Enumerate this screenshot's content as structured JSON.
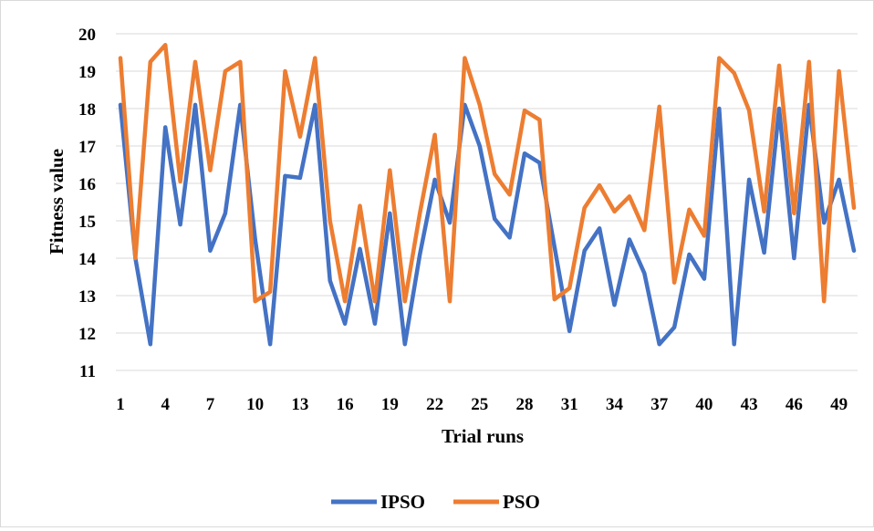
{
  "chart_data": {
    "type": "line",
    "xlabel": "Trial runs",
    "ylabel": "Fitness value",
    "ylim": [
      11,
      20
    ],
    "yticks": [
      11,
      12,
      13,
      14,
      15,
      16,
      17,
      18,
      19,
      20
    ],
    "xtick_labels": [
      "1",
      "4",
      "7",
      "10",
      "13",
      "16",
      "19",
      "22",
      "25",
      "28",
      "31",
      "34",
      "37",
      "40",
      "43",
      "46",
      "49"
    ],
    "x": [
      1,
      2,
      3,
      4,
      5,
      6,
      7,
      8,
      9,
      10,
      11,
      12,
      13,
      14,
      15,
      16,
      17,
      18,
      19,
      20,
      21,
      22,
      23,
      24,
      25,
      26,
      27,
      28,
      29,
      30,
      31,
      32,
      33,
      34,
      35,
      36,
      37,
      38,
      39,
      40,
      41,
      42,
      43,
      44,
      45,
      46,
      47,
      48,
      49,
      50
    ],
    "grid": "horizontal",
    "legend_position": "bottom",
    "series": [
      {
        "name": "IPSO",
        "color": "#4472C4",
        "values": [
          18.1,
          14.0,
          11.7,
          17.5,
          14.9,
          18.1,
          14.2,
          15.2,
          18.1,
          14.5,
          11.7,
          16.2,
          16.15,
          18.1,
          13.4,
          12.25,
          14.25,
          12.25,
          15.2,
          11.7,
          14.1,
          16.1,
          14.95,
          18.1,
          17.0,
          15.05,
          14.55,
          16.8,
          16.55,
          14.3,
          12.05,
          14.2,
          14.8,
          12.75,
          14.5,
          13.6,
          11.7,
          12.15,
          14.1,
          13.45,
          18.0,
          11.7,
          16.1,
          14.15,
          18.0,
          14.0,
          18.1,
          14.95,
          16.1,
          14.2
        ]
      },
      {
        "name": "PSO",
        "color": "#ED7D31",
        "values": [
          19.35,
          14.0,
          19.25,
          19.7,
          16.05,
          19.25,
          16.35,
          19.0,
          19.25,
          12.85,
          13.1,
          19.0,
          17.25,
          19.35,
          15.0,
          12.85,
          15.4,
          12.85,
          16.35,
          12.85,
          15.2,
          17.3,
          12.85,
          19.35,
          18.1,
          16.25,
          15.7,
          17.95,
          17.7,
          12.9,
          13.2,
          15.35,
          15.95,
          15.25,
          15.65,
          14.75,
          18.05,
          13.35,
          15.3,
          14.6,
          19.35,
          18.95,
          17.95,
          15.25,
          19.15,
          15.2,
          19.25,
          12.85,
          19.0,
          15.35
        ]
      }
    ]
  }
}
